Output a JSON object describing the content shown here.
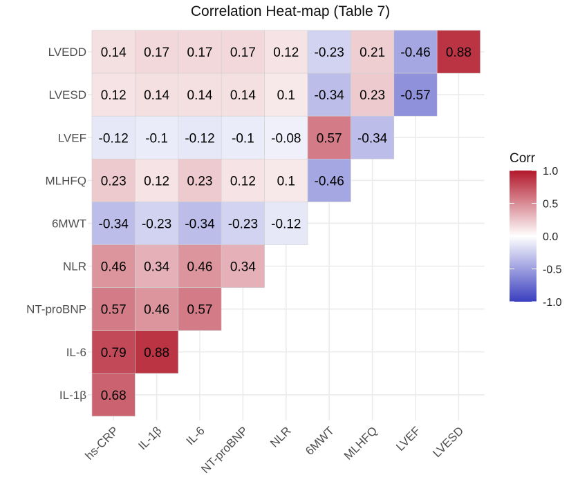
{
  "chart_data": {
    "type": "heatmap",
    "title": "Correlation Heat-map (Table 7)",
    "xlabel": "",
    "ylabel": "",
    "x_categories": [
      "hs-CRP",
      "IL-1β",
      "IL-6",
      "NT-proBNP",
      "NLR",
      "6MWT",
      "MLHFQ",
      "LVEF",
      "LVESD"
    ],
    "y_categories_top_to_bottom": [
      "LVEDD",
      "LVESD",
      "LVEF",
      "MLHFQ",
      "6MWT",
      "NLR",
      "NT-proBNP",
      "IL-6",
      "IL-1β"
    ],
    "rows": [
      {
        "y": "LVEDD",
        "values": [
          "0.14",
          "0.17",
          "0.17",
          "0.17",
          "0.12",
          "-0.23",
          "0.21",
          "-0.46",
          "0.88"
        ]
      },
      {
        "y": "LVESD",
        "values": [
          "0.12",
          "0.14",
          "0.14",
          "0.14",
          "0.1",
          "-0.34",
          "0.23",
          "-0.57"
        ]
      },
      {
        "y": "LVEF",
        "values": [
          "-0.12",
          "-0.1",
          "-0.12",
          "-0.1",
          "-0.08",
          "0.57",
          "-0.34"
        ]
      },
      {
        "y": "MLHFQ",
        "values": [
          "0.23",
          "0.12",
          "0.23",
          "0.12",
          "0.1",
          "-0.46"
        ]
      },
      {
        "y": "6MWT",
        "values": [
          "-0.34",
          "-0.23",
          "-0.34",
          "-0.23",
          "-0.12"
        ]
      },
      {
        "y": "NLR",
        "values": [
          "0.46",
          "0.34",
          "0.46",
          "0.34"
        ]
      },
      {
        "y": "NT-proBNP",
        "values": [
          "0.57",
          "0.46",
          "0.57"
        ]
      },
      {
        "y": "IL-6",
        "values": [
          "0.79",
          "0.88"
        ]
      },
      {
        "y": "IL-1β",
        "values": [
          "0.68"
        ]
      }
    ],
    "legend": {
      "title": "Corr",
      "position": "right",
      "ticks": [
        "1.0",
        "0.5",
        "0.0",
        "-0.5",
        "-1.0"
      ],
      "range": [
        -1,
        1
      ],
      "colors": {
        "low": "#3A3FBF",
        "mid": "#FFFFFF",
        "high": "#B2182B"
      }
    },
    "grid": true
  }
}
